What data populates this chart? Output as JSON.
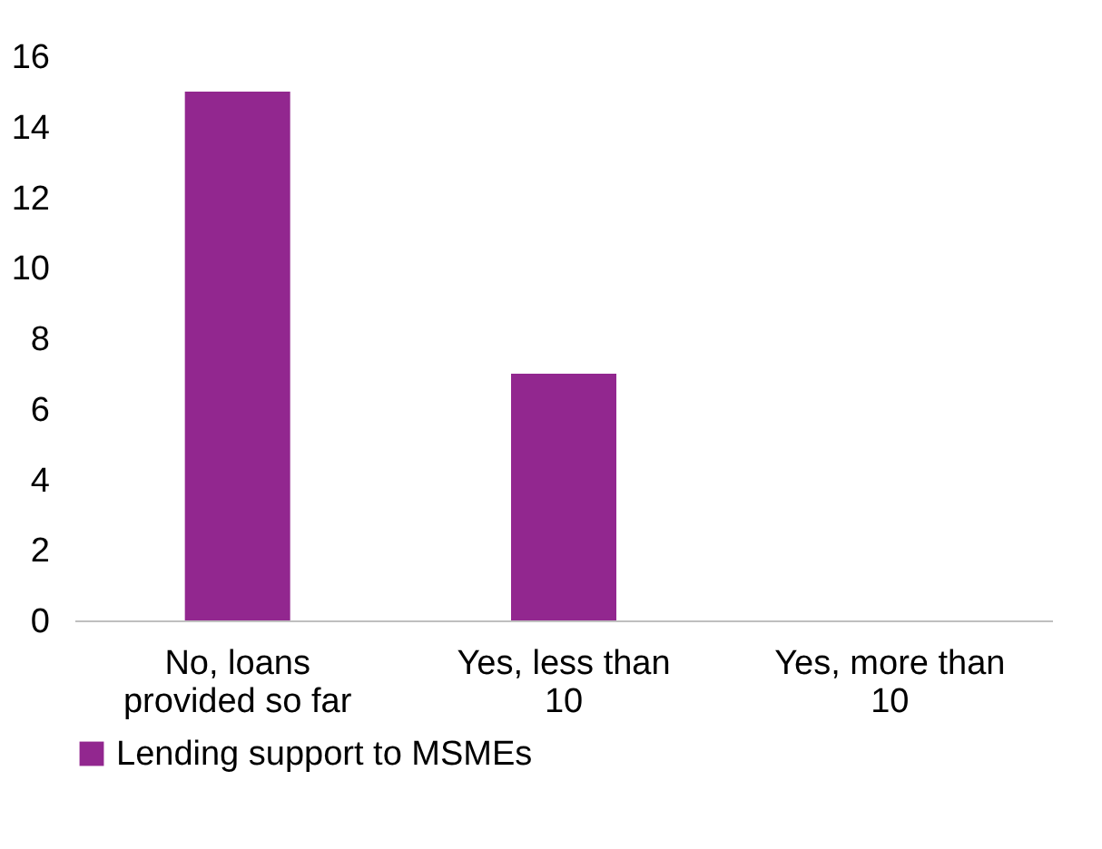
{
  "chart_data": {
    "type": "bar",
    "categories": [
      "No, loans provided so far",
      "Yes, less than 10",
      "Yes, more than 10"
    ],
    "series": [
      {
        "name": "Lending support to MSMEs",
        "color": "#92278f",
        "values": [
          15,
          7,
          0
        ]
      }
    ],
    "ylim": [
      0,
      16
    ],
    "yticks": [
      0,
      2,
      4,
      6,
      8,
      10,
      12,
      14,
      16
    ],
    "grid": false,
    "legend": "bottom left"
  }
}
